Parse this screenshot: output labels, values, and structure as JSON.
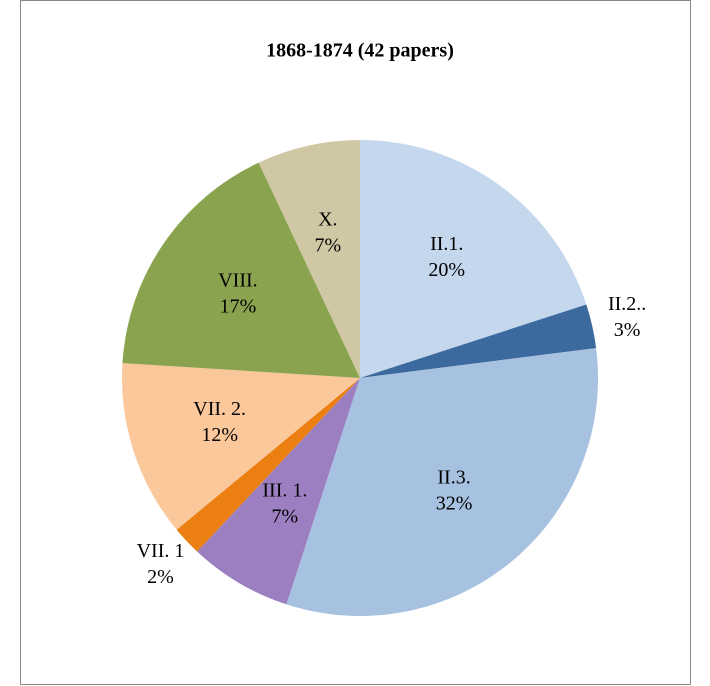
{
  "chart_data": {
    "type": "pie",
    "title": "1868-1874 (42 papers)",
    "categories": [
      "II.1.",
      "II.2..",
      "II.3.",
      "III. 1.",
      "VII. 1",
      "VII. 2.",
      "VIII.",
      "X."
    ],
    "values": [
      20,
      3,
      32,
      7,
      2,
      12,
      17,
      7
    ],
    "value_labels": [
      "20%",
      "3%",
      "32%",
      "7%",
      "2%",
      "12%",
      "17%",
      "7%"
    ],
    "colors": [
      "#c5d7ec",
      "#3d6a9e",
      "#a7c1e0",
      "#9b7fc0",
      "#ec7f12",
      "#fac89b",
      "#8aa34e",
      "#d0c7a4"
    ]
  }
}
